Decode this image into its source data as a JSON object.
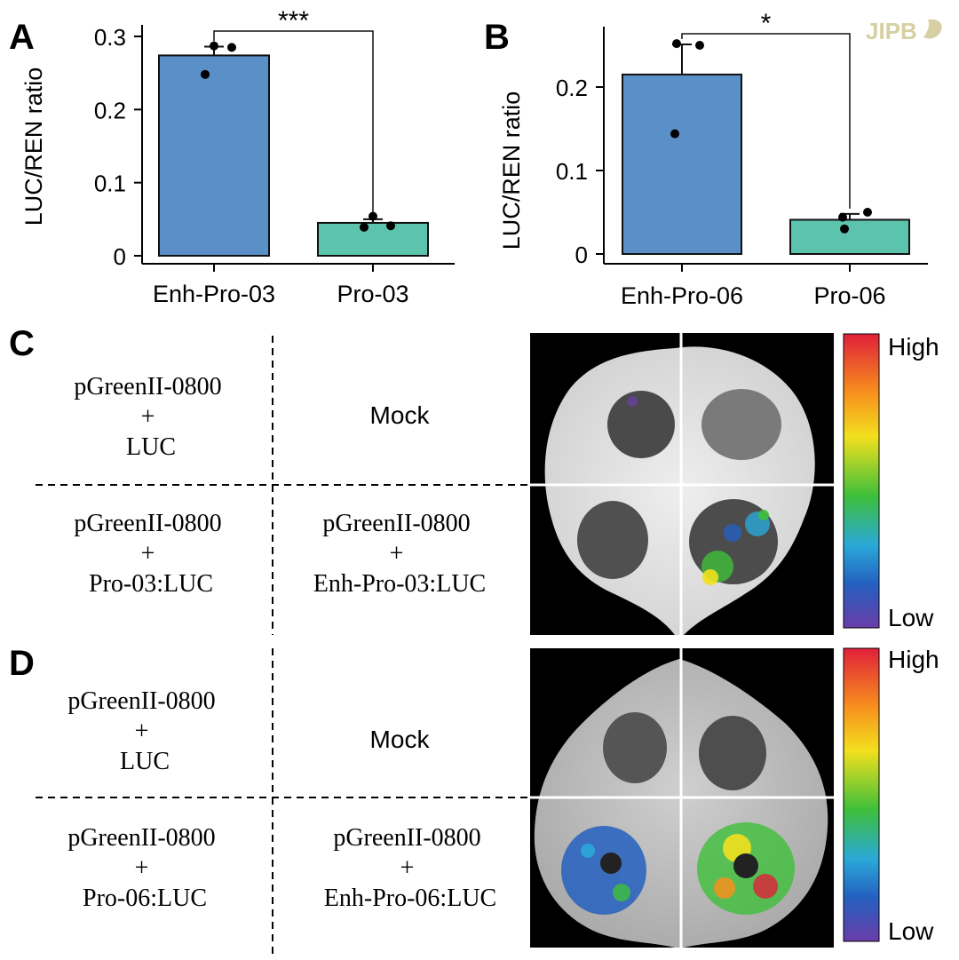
{
  "watermark": "JIPB",
  "chart_data": [
    {
      "panel": "A",
      "type": "bar",
      "ylabel": "LUC/REN ratio",
      "ylim": [
        0,
        0.3
      ],
      "yticks": [
        0,
        0.1,
        0.2,
        0.3
      ],
      "ytick_labels": [
        "0",
        "0.1",
        "0.2",
        "0.3"
      ],
      "categories": [
        "Enh-Pro-03",
        "Pro-03"
      ],
      "values": [
        0.274,
        0.045
      ],
      "errors": [
        0.012,
        0.005
      ],
      "points": [
        [
          0.248,
          0.285,
          0.287
        ],
        [
          0.039,
          0.041,
          0.054
        ]
      ],
      "colors": [
        "#5b8fc7",
        "#5cc4ad"
      ],
      "significance": "***"
    },
    {
      "panel": "B",
      "type": "bar",
      "ylabel": "LUC/REN ratio",
      "ylim": [
        0,
        0.26
      ],
      "yticks": [
        0,
        0.1,
        0.2
      ],
      "ytick_labels": [
        "0",
        "0.1",
        "0.2"
      ],
      "categories": [
        "Enh-Pro-06",
        "Pro-06"
      ],
      "values": [
        0.215,
        0.041
      ],
      "errors": [
        0.036,
        0.007
      ],
      "points": [
        [
          0.144,
          0.25,
          0.252
        ],
        [
          0.044,
          0.05,
          0.03
        ]
      ],
      "colors": [
        "#5b8fc7",
        "#5cc4ad"
      ],
      "significance": "*"
    }
  ],
  "panels": {
    "C": {
      "letter": "C",
      "top_left": [
        "pGreenII-0800",
        "+",
        "LUC"
      ],
      "top_right": "Mock",
      "bottom_left": [
        "pGreenII-0800",
        "+",
        "Pro-03:LUC"
      ],
      "bottom_right": [
        "pGreenII-0800",
        "+",
        "Enh-Pro-03:LUC"
      ],
      "scale_high": "High",
      "scale_low": "Low"
    },
    "D": {
      "letter": "D",
      "top_left": [
        "pGreenII-0800",
        "+",
        "LUC"
      ],
      "top_right": "Mock",
      "bottom_left": [
        "pGreenII-0800",
        "+",
        "Pro-06:LUC"
      ],
      "bottom_right": [
        "pGreenII-0800",
        "+",
        "Enh-Pro-06:LUC"
      ],
      "scale_high": "High",
      "scale_low": "Low"
    }
  }
}
